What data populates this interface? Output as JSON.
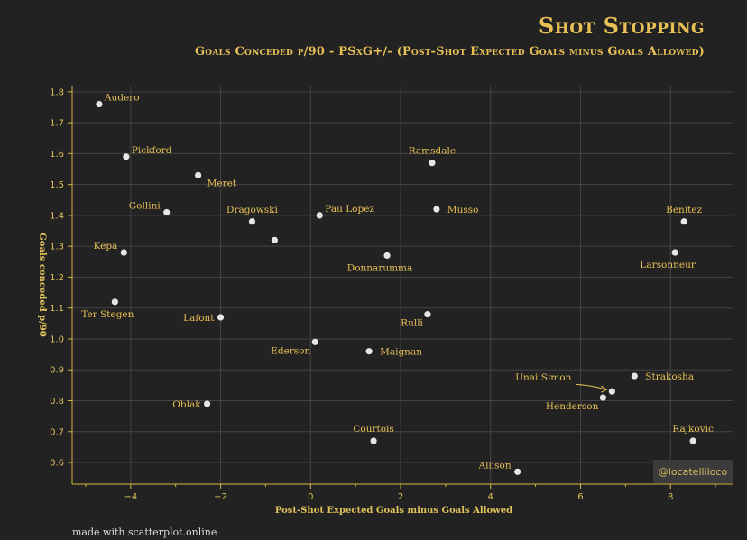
{
  "chart_data": {
    "type": "scatter",
    "title": "Shot Stopping",
    "subtitle": "Goals Conceded p/90 - PSxG+/- (Post-Shot Expected Goals minus Goals Allowed)",
    "xlabel": "Post-Shot Expected Goals minus Goals Allowed",
    "ylabel": "Goals conceded p/90",
    "xlim": [
      -5.3,
      9.4
    ],
    "ylim": [
      0.53,
      1.82
    ],
    "xticks": [
      -4,
      -2,
      0,
      2,
      4,
      6,
      8
    ],
    "yticks": [
      0.6,
      0.7,
      0.8,
      0.9,
      1.0,
      1.1,
      1.2,
      1.3,
      1.4,
      1.5,
      1.6,
      1.7,
      1.8
    ],
    "grid": true,
    "points": [
      {
        "name": "Audero",
        "x": -4.7,
        "y": 1.76,
        "pos": "tr"
      },
      {
        "name": "Pickford",
        "x": -4.1,
        "y": 1.59,
        "pos": "tr"
      },
      {
        "name": "Meret",
        "x": -2.5,
        "y": 1.53,
        "pos": "br"
      },
      {
        "name": "Gollini",
        "x": -3.2,
        "y": 1.41,
        "pos": "tl"
      },
      {
        "name": "Dragowski",
        "x": -1.3,
        "y": 1.38,
        "pos": "t"
      },
      {
        "name": "",
        "x": -0.8,
        "y": 1.32,
        "pos": "none"
      },
      {
        "name": "Pau Lopez",
        "x": 0.2,
        "y": 1.4,
        "pos": "tr"
      },
      {
        "name": "Kepa",
        "x": -4.15,
        "y": 1.28,
        "pos": "tl"
      },
      {
        "name": "Ter Stegen",
        "x": -4.35,
        "y": 1.12,
        "pos": "b"
      },
      {
        "name": "Lafont",
        "x": -2.0,
        "y": 1.07,
        "pos": "l"
      },
      {
        "name": "Oblak",
        "x": -2.3,
        "y": 0.79,
        "pos": "l"
      },
      {
        "name": "Ederson",
        "x": 0.1,
        "y": 0.99,
        "pos": "bl"
      },
      {
        "name": "Maignan",
        "x": 1.3,
        "y": 0.96,
        "pos": "r"
      },
      {
        "name": "Donnarumma",
        "x": 1.7,
        "y": 1.27,
        "pos": "b"
      },
      {
        "name": "Ramsdale",
        "x": 2.7,
        "y": 1.57,
        "pos": "t"
      },
      {
        "name": "Musso",
        "x": 2.8,
        "y": 1.42,
        "pos": "r"
      },
      {
        "name": "Rulli",
        "x": 2.6,
        "y": 1.08,
        "pos": "bl"
      },
      {
        "name": "Courtois",
        "x": 1.4,
        "y": 0.67,
        "pos": "t"
      },
      {
        "name": "Allison",
        "x": 4.6,
        "y": 0.57,
        "pos": "tl"
      },
      {
        "name": "Unai Simon",
        "x": 6.7,
        "y": 0.83,
        "pos": "pointer"
      },
      {
        "name": "Henderson",
        "x": 6.5,
        "y": 0.81,
        "pos": "bl"
      },
      {
        "name": "Strakosha",
        "x": 7.2,
        "y": 0.88,
        "pos": "r"
      },
      {
        "name": "Rajkovic",
        "x": 8.5,
        "y": 0.67,
        "pos": "t"
      },
      {
        "name": "Benitez",
        "x": 8.3,
        "y": 1.38,
        "pos": "t"
      },
      {
        "name": "Larsonneur",
        "x": 8.1,
        "y": 1.28,
        "pos": "b"
      }
    ]
  },
  "credit": "@locatelliloco",
  "footer": "made with scatterplot.online"
}
